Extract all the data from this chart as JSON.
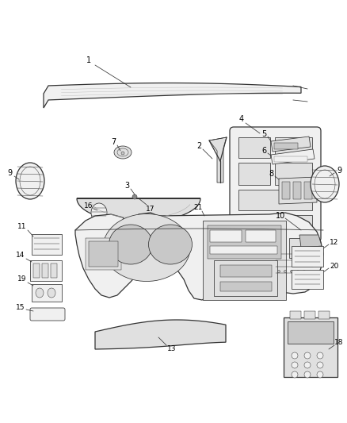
{
  "background_color": "#ffffff",
  "fig_width": 4.38,
  "fig_height": 5.33,
  "dpi": 100,
  "line_color": "#333333",
  "light_fill": "#f0f0f0",
  "mid_fill": "#e0e0e0",
  "dark_fill": "#c8c8c8",
  "font_size": 7.0,
  "lw_main": 0.9,
  "lw_thin": 0.55,
  "lw_detail": 0.35
}
